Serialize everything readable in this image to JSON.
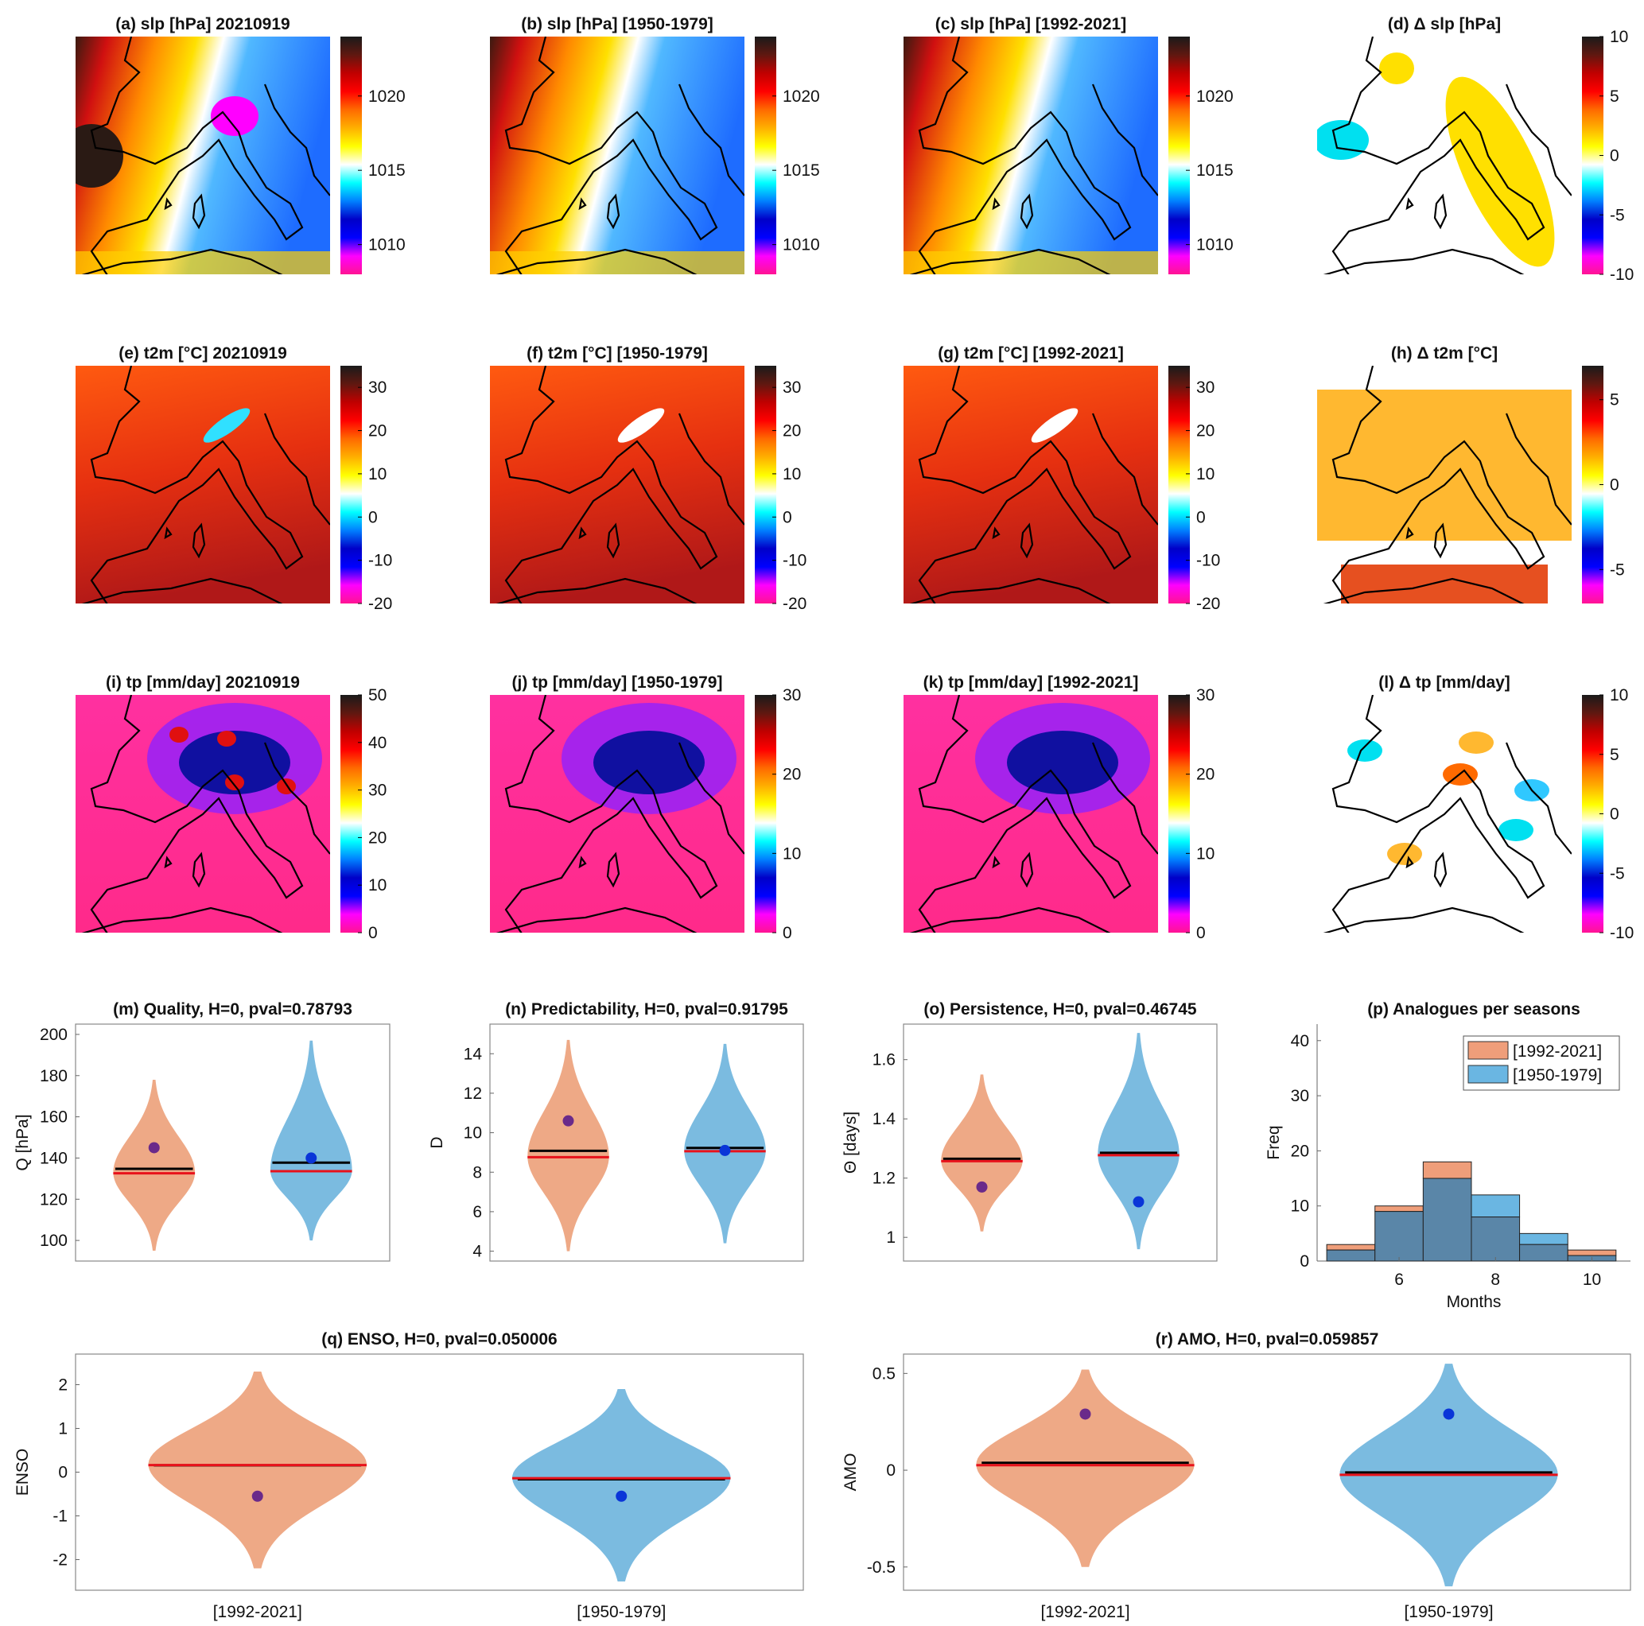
{
  "colors": {
    "orange_violin": "#eea986",
    "blue_violin": "#7bbbe0",
    "mean_line": "#000000",
    "median_line": "#e8121b",
    "dot_recent": "#6a2a8a",
    "dot_past": "#0a35d8",
    "hist_recent": "#ef9e7a",
    "hist_past": "#6ab6e2",
    "hist_overlap": "#5a86a8",
    "colormap": [
      "#ff1493",
      "#ff00ff",
      "#0000ff",
      "#0000c8",
      "#0080ff",
      "#00ffff",
      "#ffffff",
      "#ffff00",
      "#ffb000",
      "#ff6a00",
      "#ff0000",
      "#c00000",
      "#601810",
      "#1a1a1a"
    ]
  },
  "chart_data": [
    {
      "type": "heatmap",
      "id": "a",
      "title": "(a) slp [hPa] 20210919",
      "colorbar": {
        "range": [
          1008,
          1024
        ],
        "ticks": [
          1010,
          1015,
          1020
        ]
      }
    },
    {
      "type": "heatmap",
      "id": "b",
      "title": "(b) slp [hPa] [1950-1979]",
      "colorbar": {
        "range": [
          1008,
          1024
        ],
        "ticks": [
          1010,
          1015,
          1020
        ]
      }
    },
    {
      "type": "heatmap",
      "id": "c",
      "title": "(c) slp [hPa] [1992-2021]",
      "colorbar": {
        "range": [
          1008,
          1024
        ],
        "ticks": [
          1010,
          1015,
          1020
        ]
      }
    },
    {
      "type": "heatmap",
      "id": "d",
      "title": "(d) Δ slp [hPa]",
      "colorbar": {
        "range": [
          -10,
          10
        ],
        "ticks": [
          -10,
          -5,
          0,
          5,
          10
        ]
      }
    },
    {
      "type": "heatmap",
      "id": "e",
      "title": "(e) t2m [°C] 20210919",
      "colorbar": {
        "range": [
          -20,
          35
        ],
        "ticks": [
          -20,
          -10,
          0,
          10,
          20,
          30
        ]
      }
    },
    {
      "type": "heatmap",
      "id": "f",
      "title": "(f) t2m [°C] [1950-1979]",
      "colorbar": {
        "range": [
          -20,
          35
        ],
        "ticks": [
          -20,
          -10,
          0,
          10,
          20,
          30
        ]
      }
    },
    {
      "type": "heatmap",
      "id": "g",
      "title": "(g) t2m [°C] [1992-2021]",
      "colorbar": {
        "range": [
          -20,
          35
        ],
        "ticks": [
          -20,
          -10,
          0,
          10,
          20,
          30
        ]
      }
    },
    {
      "type": "heatmap",
      "id": "h",
      "title": "(h) Δ t2m [°C]",
      "colorbar": {
        "range": [
          -7,
          7
        ],
        "ticks": [
          -5,
          0,
          5
        ]
      }
    },
    {
      "type": "heatmap",
      "id": "i",
      "title": "(i) tp [mm/day] 20210919",
      "colorbar": {
        "range": [
          0,
          50
        ],
        "ticks": [
          0,
          10,
          20,
          30,
          40,
          50
        ]
      }
    },
    {
      "type": "heatmap",
      "id": "j",
      "title": "(j) tp [mm/day] [1950-1979]",
      "colorbar": {
        "range": [
          0,
          30
        ],
        "ticks": [
          0,
          10,
          20,
          30
        ]
      }
    },
    {
      "type": "heatmap",
      "id": "k",
      "title": "(k) tp [mm/day] [1992-2021]",
      "colorbar": {
        "range": [
          0,
          30
        ],
        "ticks": [
          0,
          10,
          20,
          30
        ]
      }
    },
    {
      "type": "heatmap",
      "id": "l",
      "title": "(l) Δ tp [mm/day]",
      "colorbar": {
        "range": [
          -10,
          10
        ],
        "ticks": [
          -10,
          -5,
          0,
          5,
          10
        ]
      }
    },
    {
      "type": "violin",
      "id": "m",
      "title": "(m)  Quality, H=0, pval=0.78793",
      "ylabel": "Q [hPa]",
      "ylim": [
        90,
        205
      ],
      "yticks": [
        100,
        120,
        140,
        160,
        180,
        200
      ],
      "series": [
        {
          "range": [
            95,
            178
          ],
          "mean": 134,
          "median": 133,
          "analogue_value": 145
        },
        {
          "range": [
            100,
            197
          ],
          "mean": 137,
          "median": 134,
          "analogue_value": 140
        }
      ]
    },
    {
      "type": "violin",
      "id": "n",
      "title": "(n)  Predictability, H=0, pval=0.91795",
      "ylabel": "D",
      "ylim": [
        3.5,
        15.5
      ],
      "yticks": [
        4,
        6,
        8,
        10,
        12,
        14
      ],
      "series": [
        {
          "range": [
            4,
            14.7
          ],
          "mean": 9.0,
          "median": 8.8,
          "analogue_value": 10.6
        },
        {
          "range": [
            4.4,
            14.5
          ],
          "mean": 9.15,
          "median": 9.1,
          "analogue_value": 9.1
        }
      ]
    },
    {
      "type": "violin",
      "id": "o",
      "title": "(o)  Persistence, H=0, pval=0.46745",
      "ylabel": "Θ [days]",
      "ylim": [
        0.92,
        1.72
      ],
      "yticks": [
        1,
        1.2,
        1.4,
        1.6
      ],
      "series": [
        {
          "range": [
            1.02,
            1.55
          ],
          "mean": 1.26,
          "median": 1.26,
          "analogue_value": 1.17
        },
        {
          "range": [
            0.96,
            1.69
          ],
          "mean": 1.28,
          "median": 1.28,
          "analogue_value": 1.12
        }
      ]
    },
    {
      "type": "bar",
      "id": "p",
      "title": "(p) Analogues per seasons",
      "xlabel": "Months",
      "ylabel": "Freq",
      "xlim": [
        4.3,
        10.8
      ],
      "ylim": [
        0,
        43
      ],
      "xticks": [
        6,
        8,
        10
      ],
      "yticks": [
        0,
        10,
        20,
        30,
        40
      ],
      "legend": "top-right",
      "categories": [
        5,
        6,
        7,
        8,
        9,
        10
      ],
      "series": [
        {
          "name": "[1992-2021]",
          "values": [
            3,
            10,
            18,
            8,
            3,
            2
          ]
        },
        {
          "name": "[1950-1979]",
          "values": [
            2,
            9,
            15,
            12,
            5,
            1
          ]
        }
      ]
    },
    {
      "type": "violin",
      "id": "q",
      "title": "(q)  ENSO, H=0, pval=0.050006",
      "ylabel": "ENSO",
      "ylim": [
        -2.7,
        2.7
      ],
      "yticks": [
        -2,
        -1,
        0,
        1,
        2
      ],
      "categories": [
        "[1992-2021]",
        "[1950-1979]"
      ],
      "series": [
        {
          "range": [
            -2.2,
            2.3
          ],
          "mean": 0.12,
          "median": 0.18,
          "analogue_value": -0.55
        },
        {
          "range": [
            -2.5,
            1.9
          ],
          "mean": -0.2,
          "median": -0.12,
          "analogue_value": -0.55
        }
      ]
    },
    {
      "type": "violin",
      "id": "r",
      "title": "(r)  AMO, H=0, pval=0.059857",
      "ylabel": "AMO",
      "ylim": [
        -0.62,
        0.6
      ],
      "yticks": [
        -0.5,
        0,
        0.5
      ],
      "categories": [
        "[1992-2021]",
        "[1950-1979]"
      ],
      "series": [
        {
          "range": [
            -0.5,
            0.52
          ],
          "mean": 0.03,
          "median": 0.03,
          "analogue_value": 0.29
        },
        {
          "range": [
            -0.6,
            0.55
          ],
          "mean": -0.02,
          "median": -0.02,
          "analogue_value": 0.29
        }
      ]
    }
  ]
}
